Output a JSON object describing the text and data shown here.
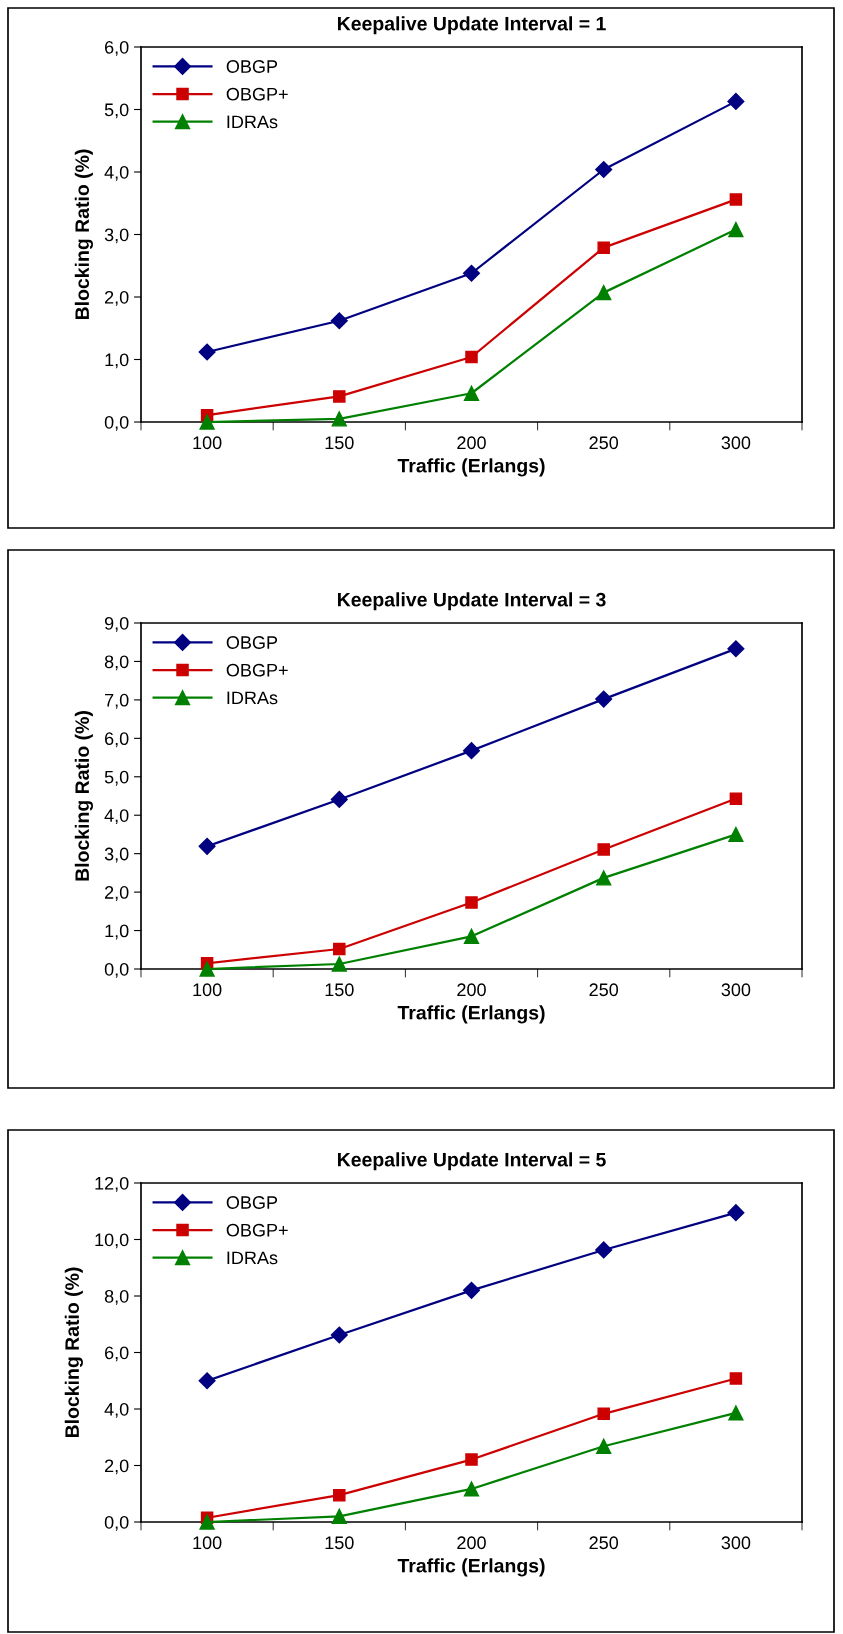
{
  "chart_data": [
    {
      "type": "line",
      "title": "Keepalive Update Interval = 1",
      "xlabel": "Traffic (Erlangs)",
      "ylabel": "Blocking Ratio (%)",
      "categories": [
        "100",
        "150",
        "200",
        "250",
        "300"
      ],
      "ylim": [
        0,
        6
      ],
      "yticks": [
        {
          "value": 0,
          "label": "0,0"
        },
        {
          "value": 1,
          "label": "1,0"
        },
        {
          "value": 2,
          "label": "2,0"
        },
        {
          "value": 3,
          "label": "3,0"
        },
        {
          "value": 4,
          "label": "4,0"
        },
        {
          "value": 5,
          "label": "5,0"
        },
        {
          "value": 6,
          "label": "6,0"
        }
      ],
      "grid": false,
      "legend": "top left",
      "series": [
        {
          "name": "OBGP",
          "color": "#000080",
          "marker": "diamond",
          "values": [
            1.12,
            1.62,
            2.38,
            4.04,
            5.13
          ]
        },
        {
          "name": "OBGP+",
          "color": "#cc0000",
          "marker": "square",
          "values": [
            0.11,
            0.41,
            1.04,
            2.79,
            3.56
          ]
        },
        {
          "name": "IDRAs",
          "color": "#008000",
          "marker": "triangle",
          "values": [
            0.0,
            0.05,
            0.46,
            2.07,
            3.08
          ]
        }
      ]
    },
    {
      "type": "line",
      "title": "Keepalive Update Interval = 3",
      "xlabel": "Traffic (Erlangs)",
      "ylabel": "Blocking Ratio (%)",
      "categories": [
        "100",
        "150",
        "200",
        "250",
        "300"
      ],
      "ylim": [
        0,
        9
      ],
      "yticks": [
        {
          "value": 0,
          "label": "0,0"
        },
        {
          "value": 1,
          "label": "1,0"
        },
        {
          "value": 2,
          "label": "2,0"
        },
        {
          "value": 3,
          "label": "3,0"
        },
        {
          "value": 4,
          "label": "4,0"
        },
        {
          "value": 5,
          "label": "5,0"
        },
        {
          "value": 6,
          "label": "6,0"
        },
        {
          "value": 7,
          "label": "7,0"
        },
        {
          "value": 8,
          "label": "8,0"
        },
        {
          "value": 9,
          "label": "9,0"
        }
      ],
      "grid": false,
      "legend": "top left",
      "series": [
        {
          "name": "OBGP",
          "color": "#000080",
          "marker": "diamond",
          "values": [
            3.19,
            4.41,
            5.68,
            7.02,
            8.33
          ]
        },
        {
          "name": "OBGP+",
          "color": "#cc0000",
          "marker": "square",
          "values": [
            0.15,
            0.52,
            1.73,
            3.11,
            4.43
          ]
        },
        {
          "name": "IDRAs",
          "color": "#008000",
          "marker": "triangle",
          "values": [
            0.0,
            0.13,
            0.85,
            2.37,
            3.5
          ]
        }
      ]
    },
    {
      "type": "line",
      "title": "Keepalive Update Interval = 5",
      "xlabel": "Traffic (Erlangs)",
      "ylabel": "Blocking Ratio (%)",
      "categories": [
        "100",
        "150",
        "200",
        "250",
        "300"
      ],
      "ylim": [
        0,
        12
      ],
      "yticks": [
        {
          "value": 0,
          "label": "0,0"
        },
        {
          "value": 2,
          "label": "2,0"
        },
        {
          "value": 4,
          "label": "4,0"
        },
        {
          "value": 6,
          "label": "6,0"
        },
        {
          "value": 8,
          "label": "8,0"
        },
        {
          "value": 10,
          "label": "10,0"
        },
        {
          "value": 12,
          "label": "12,0"
        }
      ],
      "grid": false,
      "legend": "top left",
      "series": [
        {
          "name": "OBGP",
          "color": "#000080",
          "marker": "diamond",
          "values": [
            5.0,
            6.62,
            8.2,
            9.63,
            10.95
          ]
        },
        {
          "name": "OBGP+",
          "color": "#cc0000",
          "marker": "square",
          "values": [
            0.15,
            0.95,
            2.21,
            3.83,
            5.08
          ]
        },
        {
          "name": "IDRAs",
          "color": "#008000",
          "marker": "triangle",
          "values": [
            0.0,
            0.2,
            1.17,
            2.68,
            3.86
          ]
        }
      ]
    }
  ]
}
